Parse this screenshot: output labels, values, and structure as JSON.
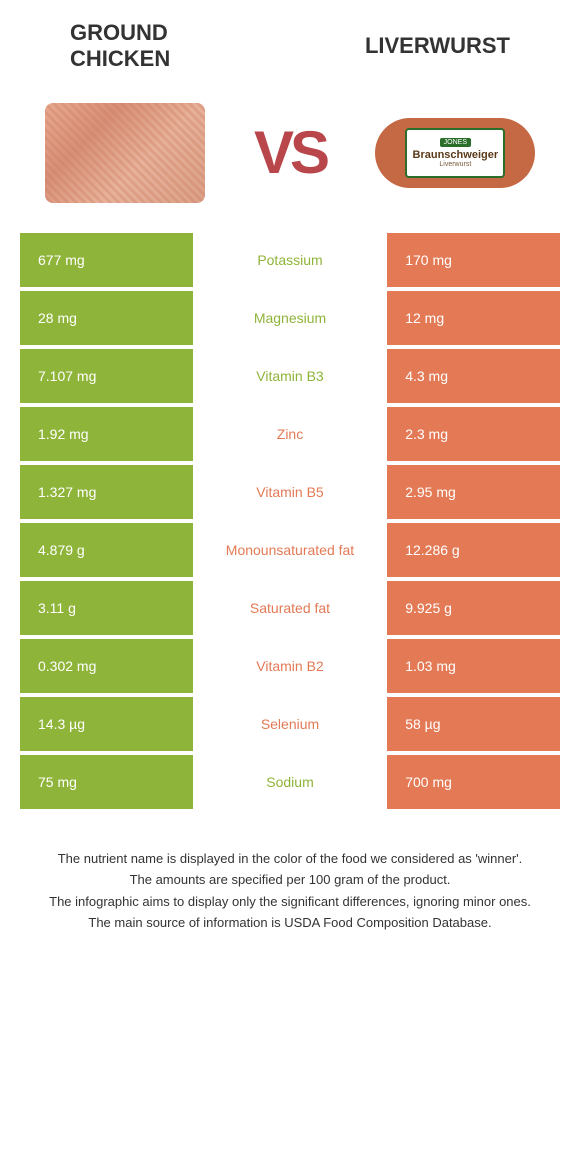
{
  "colors": {
    "left": "#8fb43a",
    "right": "#e37a55",
    "left_text": "#8fb43a",
    "right_text": "#e37a55",
    "vs": "#b8464a"
  },
  "left_food": {
    "title_line1": "GROUND",
    "title_line2": "CHICKEN"
  },
  "right_food": {
    "title": "LIVERWURST"
  },
  "vs_label": "VS",
  "liverwurst_pkg": {
    "brand_top": "JONES",
    "brand": "Braunschweiger",
    "sub": "Liverwurst"
  },
  "rows": [
    {
      "left": "677 mg",
      "label": "Potassium",
      "right": "170 mg",
      "winner": "left"
    },
    {
      "left": "28 mg",
      "label": "Magnesium",
      "right": "12 mg",
      "winner": "left"
    },
    {
      "left": "7.107 mg",
      "label": "Vitamin B3",
      "right": "4.3 mg",
      "winner": "left"
    },
    {
      "left": "1.92 mg",
      "label": "Zinc",
      "right": "2.3 mg",
      "winner": "right"
    },
    {
      "left": "1.327 mg",
      "label": "Vitamin B5",
      "right": "2.95 mg",
      "winner": "right"
    },
    {
      "left": "4.879 g",
      "label": "Monounsaturated fat",
      "right": "12.286 g",
      "winner": "right"
    },
    {
      "left": "3.11 g",
      "label": "Saturated fat",
      "right": "9.925 g",
      "winner": "right"
    },
    {
      "left": "0.302 mg",
      "label": "Vitamin B2",
      "right": "1.03 mg",
      "winner": "right"
    },
    {
      "left": "14.3 µg",
      "label": "Selenium",
      "right": "58 µg",
      "winner": "right"
    },
    {
      "left": "75 mg",
      "label": "Sodium",
      "right": "700 mg",
      "winner": "left"
    }
  ],
  "footer": {
    "line1": "The nutrient name is displayed in the color of the food we considered as 'winner'.",
    "line2": "The amounts are specified per 100 gram of the product.",
    "line3": "The infographic aims to display only the significant differences, ignoring minor ones.",
    "line4": "The main source of information is USDA Food Composition Database."
  }
}
